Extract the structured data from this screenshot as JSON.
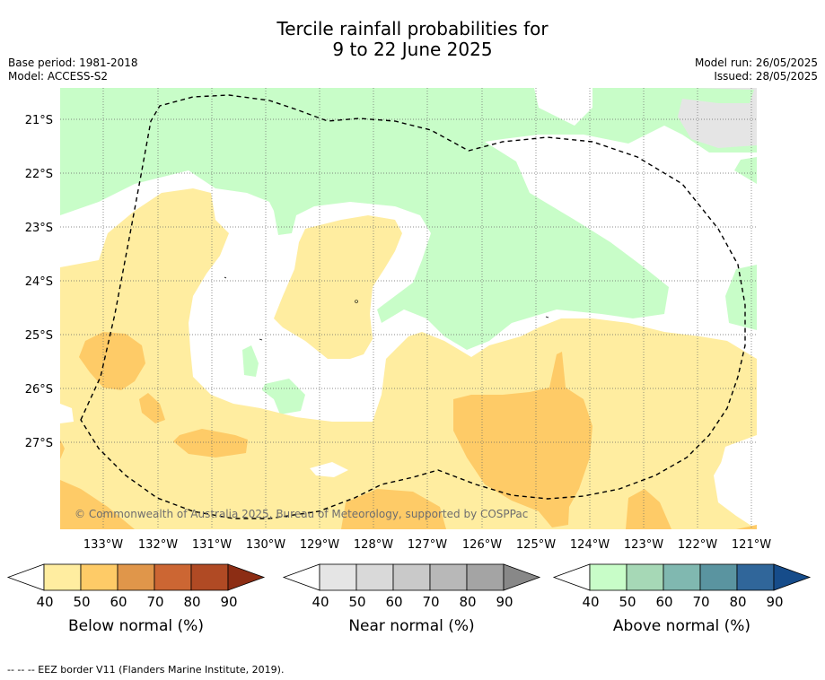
{
  "title": {
    "line1": "Tercile rainfall probabilities for",
    "line2": "9 to 22 June 2025"
  },
  "meta": {
    "base_period": "Base period: 1981-2018",
    "model": "Model: ACCESS-S2",
    "model_run": "Model run: 26/05/2025",
    "issued": "Issued: 28/05/2025"
  },
  "map": {
    "lat_ticks": [
      "21°S",
      "22°S",
      "23°S",
      "24°S",
      "25°S",
      "26°S",
      "27°S"
    ],
    "lon_ticks": [
      "133°W",
      "132°W",
      "131°W",
      "130°W",
      "129°W",
      "128°W",
      "127°W",
      "126°W",
      "125°W",
      "124°W",
      "123°W",
      "122°W",
      "121°W"
    ],
    "copyright": "© Commonwealth of Australia 2025, Bureau of Meteorology, supported by COSPPac",
    "colors": {
      "below_50": "#ffeda0",
      "below_60": "#fecb67",
      "normal_50": "#e5e5e5",
      "above_50": "#c8fdc8"
    }
  },
  "legends": [
    {
      "label": "Below normal (%)",
      "ticks": [
        "40",
        "50",
        "60",
        "70",
        "80",
        "90"
      ],
      "colors": [
        "#ffeda0",
        "#fecb67",
        "#e0964a",
        "#cc6633",
        "#b04a24"
      ],
      "extend_color": "#8c2d14"
    },
    {
      "label": "Near normal (%)",
      "ticks": [
        "40",
        "50",
        "60",
        "70",
        "80",
        "90"
      ],
      "colors": [
        "#e5e5e5",
        "#d9d9d9",
        "#c9c9c9",
        "#b8b8b8",
        "#a4a4a4"
      ],
      "extend_color": "#888888"
    },
    {
      "label": "Above normal (%)",
      "ticks": [
        "40",
        "50",
        "60",
        "70",
        "80",
        "90"
      ],
      "colors": [
        "#c8fdc8",
        "#a6d8b6",
        "#80b8b0",
        "#5a94a0",
        "#30669a"
      ],
      "extend_color": "#164c8a"
    }
  ],
  "footnote": "--  --  -- EEZ border V11 (Flanders Marine Institute, 2019)."
}
